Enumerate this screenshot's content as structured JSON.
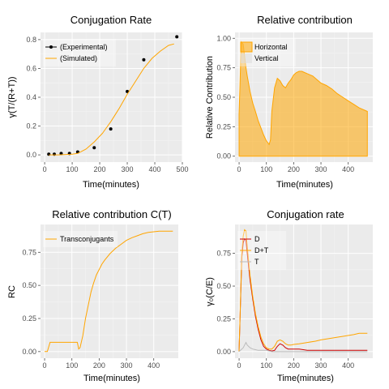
{
  "chart_data": [
    {
      "type": "line",
      "title": "Conjugation Rate",
      "xlabel": "Time(minutes)",
      "ylabel": "γ(T/(R+T))",
      "xlim": [
        -15,
        500
      ],
      "ylim": [
        -0.05,
        0.85
      ],
      "xticks": [
        0,
        100,
        200,
        300,
        400,
        500
      ],
      "xtick_labels": [
        "0",
        "100",
        "200",
        "300",
        "400",
        "500"
      ],
      "yticks": [
        0.0,
        0.2,
        0.4,
        0.6,
        0.8
      ],
      "ytick_labels": [
        "0.0",
        "0.2",
        "0.4",
        "0.6",
        "0.8"
      ],
      "grid": true,
      "legend": "top-left",
      "series": [
        {
          "name": "(Experimental)",
          "kind": "points",
          "color": "#000000",
          "x": [
            15,
            35,
            60,
            90,
            120,
            180,
            240,
            300,
            360,
            480
          ],
          "y": [
            0.005,
            0.005,
            0.01,
            0.01,
            0.02,
            0.05,
            0.18,
            0.44,
            0.66,
            0.82
          ]
        },
        {
          "name": "(Simulated)",
          "kind": "line",
          "color": "#FFA500",
          "x": [
            15,
            50,
            100,
            120,
            150,
            180,
            210,
            240,
            270,
            300,
            330,
            360,
            390,
            420,
            450,
            470
          ],
          "y": [
            0.0,
            0.0,
            0.005,
            0.01,
            0.04,
            0.09,
            0.15,
            0.23,
            0.32,
            0.42,
            0.51,
            0.6,
            0.67,
            0.72,
            0.76,
            0.77
          ]
        }
      ]
    },
    {
      "type": "area",
      "title": "Relative contribution",
      "xlabel": "Time(minutes)",
      "ylabel": "Relative Contribution",
      "xlim": [
        -15,
        490
      ],
      "ylim": [
        -0.05,
        1.05
      ],
      "xticks": [
        0,
        100,
        200,
        300,
        400
      ],
      "xtick_labels": [
        "0",
        "100",
        "200",
        "300",
        "400"
      ],
      "yticks": [
        0.0,
        0.25,
        0.5,
        0.75,
        1.0
      ],
      "ytick_labels": [
        "0.00",
        "0.25",
        "0.50",
        "0.75",
        "1.00"
      ],
      "grid": true,
      "legend": "top-left",
      "series": [
        {
          "name": "Horizontal",
          "color": "#FFA500",
          "x": [
            0,
            8,
            15,
            20,
            25,
            30,
            40,
            50,
            60,
            70,
            80,
            90,
            100,
            110,
            115,
            120,
            130,
            140,
            150,
            160,
            170,
            180,
            190,
            200,
            210,
            220,
            230,
            240,
            250,
            260,
            270,
            280,
            290,
            300,
            320,
            340,
            360,
            380,
            400,
            420,
            440,
            460,
            470
          ],
          "y": [
            0.35,
            0.97,
            0.95,
            0.85,
            0.75,
            0.68,
            0.55,
            0.45,
            0.38,
            0.3,
            0.24,
            0.18,
            0.13,
            0.1,
            0.14,
            0.38,
            0.58,
            0.66,
            0.64,
            0.6,
            0.58,
            0.62,
            0.65,
            0.69,
            0.71,
            0.72,
            0.72,
            0.71,
            0.7,
            0.69,
            0.68,
            0.66,
            0.64,
            0.62,
            0.6,
            0.57,
            0.53,
            0.5,
            0.47,
            0.44,
            0.41,
            0.39,
            0.38
          ]
        },
        {
          "name": "Vertical",
          "color": "#DDDDDD",
          "x": [],
          "y": []
        }
      ]
    },
    {
      "type": "line",
      "title": "Relative contribution C(T)",
      "xlabel": "Time(minutes)",
      "ylabel": "RC",
      "xlim": [
        -15,
        490
      ],
      "ylim": [
        -0.05,
        0.96
      ],
      "xticks": [
        0,
        100,
        200,
        300,
        400
      ],
      "xtick_labels": [
        "0",
        "100",
        "200",
        "300",
        "400"
      ],
      "yticks": [
        0.0,
        0.25,
        0.5,
        0.75
      ],
      "ytick_labels": [
        "0.00",
        "0.25",
        "0.50",
        "0.75"
      ],
      "grid": true,
      "legend": "top-left",
      "series": [
        {
          "name": "Transconjugants",
          "color": "#FFA500",
          "x": [
            0,
            10,
            20,
            40,
            60,
            80,
            100,
            120,
            125,
            130,
            140,
            150,
            160,
            170,
            180,
            190,
            200,
            210,
            220,
            240,
            260,
            280,
            300,
            320,
            340,
            360,
            380,
            400,
            420,
            440,
            460,
            470
          ],
          "y": [
            0.0,
            0.0,
            0.07,
            0.07,
            0.07,
            0.07,
            0.07,
            0.07,
            0.02,
            0.03,
            0.12,
            0.25,
            0.35,
            0.45,
            0.52,
            0.58,
            0.62,
            0.66,
            0.69,
            0.74,
            0.78,
            0.81,
            0.84,
            0.86,
            0.875,
            0.89,
            0.9,
            0.905,
            0.91,
            0.91,
            0.91,
            0.91
          ]
        }
      ]
    },
    {
      "type": "line",
      "title": "Conjugation rate",
      "xlabel": "Time(minutes)",
      "ylabel": "γ₀(C/E)",
      "xlim": [
        -15,
        490
      ],
      "ylim": [
        -0.05,
        0.97
      ],
      "xticks": [
        0,
        100,
        200,
        300,
        400
      ],
      "xtick_labels": [
        "0",
        "100",
        "200",
        "300",
        "400"
      ],
      "yticks": [
        0.0,
        0.25,
        0.5,
        0.75
      ],
      "ytick_labels": [
        "0.00",
        "0.25",
        "0.50",
        "0.75"
      ],
      "grid": true,
      "legend": "top-left",
      "series": [
        {
          "name": "D",
          "color": "#CC0000",
          "x": [
            0,
            10,
            15,
            20,
            25,
            30,
            40,
            50,
            60,
            70,
            80,
            90,
            100,
            110,
            120,
            130,
            140,
            150,
            160,
            170,
            180,
            200,
            220,
            250,
            300,
            350,
            400,
            450,
            470
          ],
          "y": [
            0.0,
            0.72,
            0.83,
            0.86,
            0.85,
            0.75,
            0.55,
            0.4,
            0.27,
            0.17,
            0.09,
            0.04,
            0.02,
            0.01,
            0.005,
            0.01,
            0.04,
            0.06,
            0.05,
            0.03,
            0.02,
            0.02,
            0.02,
            0.01,
            0.01,
            0.01,
            0.01,
            0.01,
            0.01
          ]
        },
        {
          "name": "D+T",
          "color": "#FFA500",
          "x": [
            0,
            10,
            15,
            20,
            25,
            30,
            40,
            50,
            60,
            70,
            80,
            90,
            100,
            110,
            120,
            130,
            140,
            150,
            160,
            170,
            180,
            190,
            200,
            220,
            250,
            280,
            300,
            330,
            360,
            390,
            420,
            440,
            460,
            470
          ],
          "y": [
            0.0,
            0.75,
            0.88,
            0.93,
            0.92,
            0.8,
            0.58,
            0.42,
            0.29,
            0.19,
            0.11,
            0.06,
            0.03,
            0.02,
            0.02,
            0.04,
            0.08,
            0.09,
            0.08,
            0.06,
            0.05,
            0.05,
            0.055,
            0.06,
            0.07,
            0.08,
            0.09,
            0.1,
            0.11,
            0.12,
            0.13,
            0.14,
            0.14,
            0.14
          ]
        },
        {
          "name": "T",
          "color": "#BBBBBB",
          "x": [
            0,
            15,
            20,
            25,
            30,
            40,
            50,
            60,
            70,
            80,
            100,
            120,
            140,
            160,
            200,
            300,
            400,
            470
          ],
          "y": [
            0.0,
            0.03,
            0.05,
            0.07,
            0.05,
            0.03,
            0.02,
            0.015,
            0.01,
            0.01,
            0.01,
            0.0,
            0.0,
            0.0,
            0.0,
            0.0,
            0.0,
            0.0
          ]
        }
      ]
    }
  ]
}
